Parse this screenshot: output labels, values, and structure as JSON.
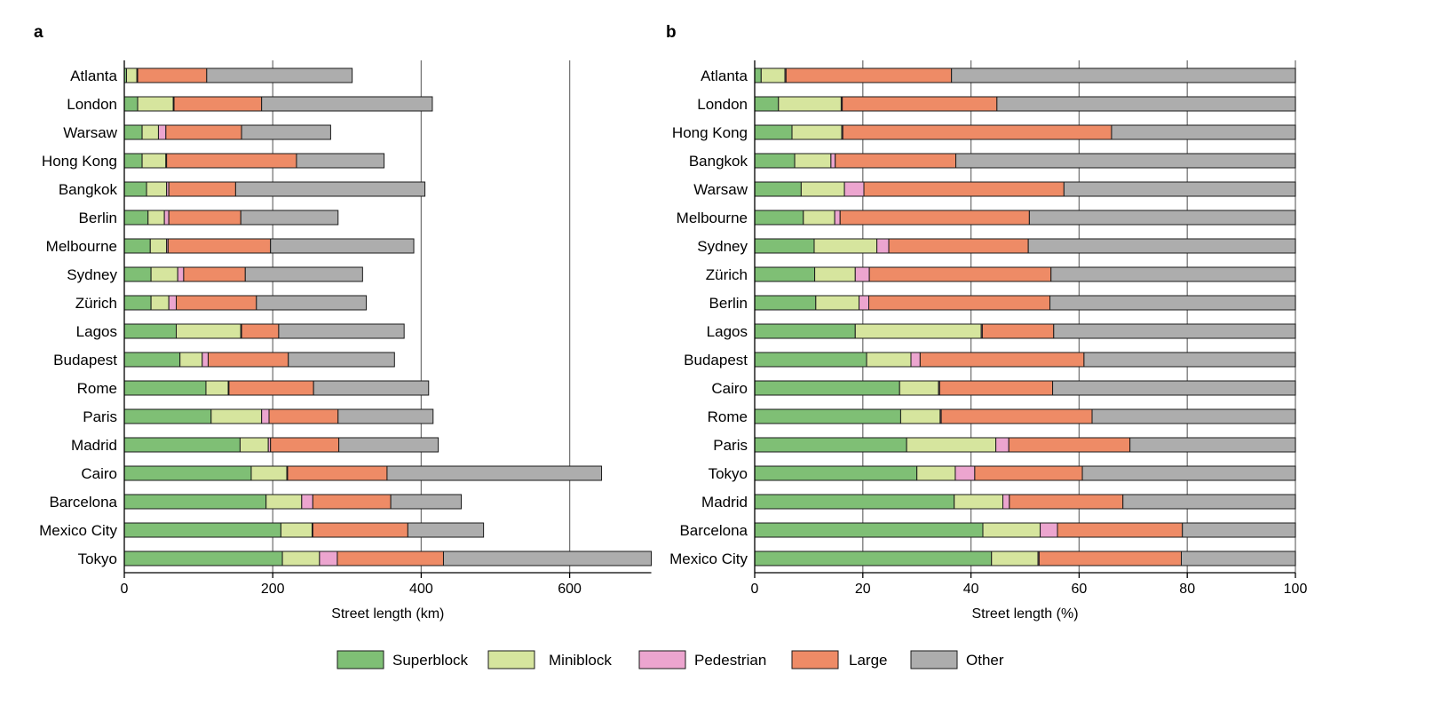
{
  "colors": {
    "Superblock": "#7fbf75",
    "Miniblock": "#d6e59e",
    "Pedestrian": "#eca5cf",
    "Large": "#ee8b66",
    "Other": "#adadad"
  },
  "legend": [
    "Superblock",
    "Miniblock",
    "Pedestrian",
    "Large",
    "Other"
  ],
  "chart_data": [
    {
      "type": "bar",
      "orientation": "horizontal",
      "stacked": true,
      "panel_label": "a",
      "xlabel": "Street length (km)",
      "xlim": [
        0,
        710
      ],
      "xticks": [
        0,
        200,
        400,
        600
      ],
      "grid": "vertical",
      "categories": [
        "Atlanta",
        "London",
        "Warsaw",
        "Hong Kong",
        "Bangkok",
        "Berlin",
        "Melbourne",
        "Sydney",
        "Zürich",
        "Lagos",
        "Budapest",
        "Rome",
        "Paris",
        "Madrid",
        "Cairo",
        "Barcelona",
        "Mexico City",
        "Tokyo"
      ],
      "series": [
        {
          "name": "Superblock",
          "values": [
            3,
            18,
            24,
            24,
            30,
            32,
            35,
            36,
            36,
            70,
            75,
            110,
            117,
            156,
            171,
            191,
            211,
            213
          ]
        },
        {
          "name": "Miniblock",
          "values": [
            14,
            48,
            22,
            32,
            27,
            22,
            22,
            36,
            24,
            87,
            30,
            30,
            68,
            38,
            48,
            48,
            42,
            50
          ]
        },
        {
          "name": "Pedestrian",
          "values": [
            1,
            1,
            10,
            1,
            3,
            6,
            2,
            8,
            10,
            1,
            8,
            1,
            10,
            3,
            1,
            15,
            1,
            24
          ]
        },
        {
          "name": "Large",
          "values": [
            93,
            118,
            102,
            175,
            90,
            97,
            138,
            83,
            108,
            50,
            108,
            114,
            93,
            92,
            134,
            105,
            128,
            143
          ]
        },
        {
          "name": "Other",
          "values": [
            196,
            230,
            120,
            118,
            255,
            131,
            193,
            158,
            148,
            169,
            143,
            155,
            128,
            134,
            289,
            95,
            102,
            280
          ]
        }
      ]
    },
    {
      "type": "bar",
      "orientation": "horizontal",
      "stacked": true,
      "panel_label": "b",
      "xlabel": "Street length (%)",
      "xlim": [
        0,
        100
      ],
      "xticks": [
        0,
        20,
        40,
        60,
        80,
        100
      ],
      "grid": "vertical",
      "categories": [
        "Atlanta",
        "London",
        "Hong Kong",
        "Bangkok",
        "Warsaw",
        "Melbourne",
        "Sydney",
        "Zürich",
        "Berlin",
        "Lagos",
        "Budapest",
        "Cairo",
        "Rome",
        "Paris",
        "Tokyo",
        "Madrid",
        "Barcelona",
        "Mexico City"
      ],
      "series": [
        {
          "name": "Superblock",
          "values": [
            1.2,
            4.4,
            6.9,
            7.4,
            8.6,
            9.0,
            11.0,
            11.1,
            11.3,
            18.6,
            20.7,
            26.8,
            27.0,
            28.1,
            30.0,
            36.9,
            42.2,
            43.8
          ]
        },
        {
          "name": "Miniblock",
          "values": [
            4.4,
            11.6,
            9.2,
            6.7,
            8.0,
            5.8,
            11.6,
            7.5,
            8.0,
            23.3,
            8.2,
            7.2,
            7.3,
            16.5,
            7.1,
            9.0,
            10.6,
            8.6
          ]
        },
        {
          "name": "Pedestrian",
          "values": [
            0.2,
            0.2,
            0.2,
            0.8,
            3.6,
            1.0,
            2.2,
            2.6,
            1.8,
            0.2,
            1.7,
            0.2,
            0.2,
            2.4,
            3.6,
            1.2,
            3.2,
            0.2
          ]
        },
        {
          "name": "Large",
          "values": [
            30.6,
            28.6,
            49.7,
            22.3,
            37.0,
            35.0,
            25.8,
            33.6,
            33.5,
            13.2,
            30.3,
            20.9,
            27.9,
            22.4,
            19.9,
            21.0,
            23.1,
            26.3
          ]
        },
        {
          "name": "Other",
          "values": [
            63.6,
            55.2,
            34.0,
            62.8,
            42.8,
            49.2,
            49.4,
            45.2,
            45.4,
            44.7,
            39.1,
            44.9,
            37.6,
            30.6,
            39.4,
            31.9,
            20.9,
            21.1
          ]
        }
      ]
    }
  ]
}
